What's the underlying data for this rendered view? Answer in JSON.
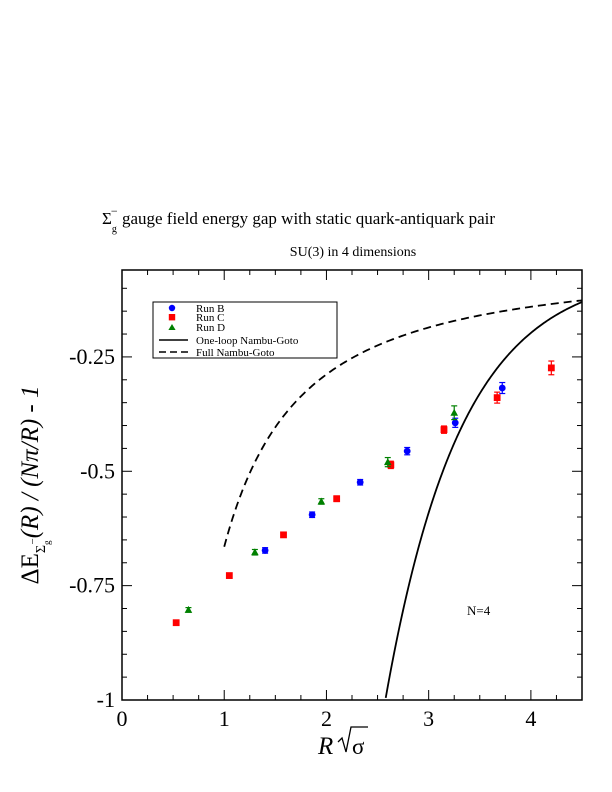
{
  "chart_data": {
    "type": "scatter",
    "title_symbol": "Σ",
    "title_sub": "g",
    "title_sup": "−",
    "title_rest": " gauge field energy gap with static quark-antiquark pair",
    "subtitle": "SU(3) in 4 dimensions",
    "xlabel_main": "R",
    "xlabel_sqrt": "σ",
    "ylabel_prefix": "ΔE",
    "ylabel_sub_symbol": "Σ",
    "ylabel_subsub": "g",
    "ylabel_subsup": "−",
    "ylabel_suffix": "(R) / (Nπ/R) - 1",
    "annotation": "N=4",
    "xlim": [
      0,
      4.5
    ],
    "ylim": [
      -1.0,
      -0.06
    ],
    "x_ticks": [
      0,
      1,
      2,
      3,
      4
    ],
    "x_tick_labels": [
      "0",
      "1",
      "2",
      "3",
      "4"
    ],
    "y_ticks": [
      -1.0,
      -0.75,
      -0.5,
      -0.25
    ],
    "y_tick_labels": [
      "-1",
      "-0.75",
      "-0.5",
      "-0.25"
    ],
    "grid": false,
    "legend_position": "top-left",
    "series": [
      {
        "name": "Run B",
        "marker": "circle",
        "color": "#0000ff",
        "points": [
          {
            "x": 1.4,
            "y": -0.673,
            "err": 0.006
          },
          {
            "x": 1.86,
            "y": -0.595,
            "err": 0.006
          },
          {
            "x": 2.33,
            "y": -0.524,
            "err": 0.006
          },
          {
            "x": 2.79,
            "y": -0.456,
            "err": 0.008
          },
          {
            "x": 3.26,
            "y": -0.394,
            "err": 0.01
          },
          {
            "x": 3.72,
            "y": -0.318,
            "err": 0.012
          }
        ]
      },
      {
        "name": "Run C",
        "marker": "square",
        "color": "#ff0000",
        "points": [
          {
            "x": 0.53,
            "y": -0.831,
            "err": 0.005
          },
          {
            "x": 1.05,
            "y": -0.728,
            "err": 0.005
          },
          {
            "x": 1.58,
            "y": -0.639,
            "err": 0.005
          },
          {
            "x": 2.1,
            "y": -0.56,
            "err": 0.006
          },
          {
            "x": 2.63,
            "y": -0.486,
            "err": 0.008
          },
          {
            "x": 3.15,
            "y": -0.409,
            "err": 0.008
          },
          {
            "x": 3.67,
            "y": -0.339,
            "err": 0.012
          },
          {
            "x": 4.2,
            "y": -0.274,
            "err": 0.015
          }
        ]
      },
      {
        "name": "Run D",
        "marker": "triangle",
        "color": "#008000",
        "points": [
          {
            "x": 0.65,
            "y": -0.803,
            "err": 0.005
          },
          {
            "x": 1.3,
            "y": -0.677,
            "err": 0.006
          },
          {
            "x": 1.95,
            "y": -0.566,
            "err": 0.006
          },
          {
            "x": 2.6,
            "y": -0.48,
            "err": 0.01
          },
          {
            "x": 3.25,
            "y": -0.372,
            "err": 0.015
          }
        ]
      }
    ],
    "curves": [
      {
        "name": "One-loop Nambu-Goto",
        "style": "solid",
        "color": "#000000"
      },
      {
        "name": "Full Nambu-Goto",
        "style": "dashed",
        "color": "#000000"
      }
    ]
  }
}
